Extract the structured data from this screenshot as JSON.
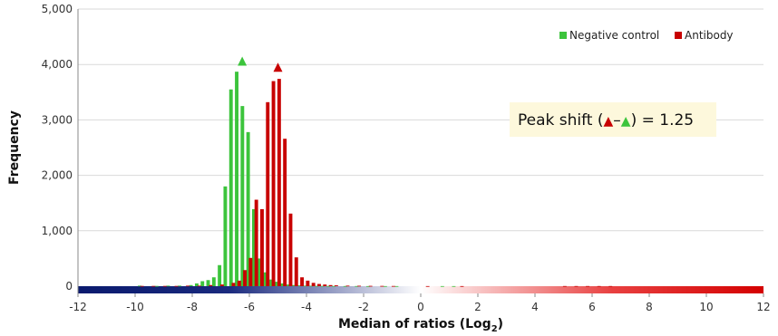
{
  "chart_data": {
    "type": "bar",
    "xlabel": "Median of ratios (Log",
    "xlabel_sub": "2",
    "xlabel_close": ")",
    "ylabel": "Frequency",
    "xlim": [
      -12,
      12
    ],
    "ylim": [
      0,
      5000
    ],
    "x_ticks": [
      "-12",
      "-10",
      "-8",
      "-6",
      "-4",
      "-2",
      "0",
      "2",
      "4",
      "6",
      "8",
      "10",
      "12"
    ],
    "y_ticks": [
      "0",
      "1,000",
      "2,000",
      "3,000",
      "4,000",
      "5,000"
    ],
    "grid": true,
    "legend_position": "top-right",
    "gradient_bar": {
      "from": "#0a1a6e",
      "mid": "#ffffff",
      "to": "#d40000",
      "from_x": -12,
      "mid_x": 0,
      "to_x": 12
    },
    "series": [
      {
        "name": "Negative control",
        "color": "#3cc43c",
        "x": [
          -9.8,
          -9.2,
          -8.8,
          -8.4,
          -8.0,
          -7.8,
          -7.6,
          -7.4,
          -7.2,
          -7.0,
          -6.8,
          -6.6,
          -6.4,
          -6.2,
          -6.0,
          -5.8,
          -5.6,
          -5.4,
          -5.2,
          -5.0,
          -4.8,
          -4.6,
          -4.4,
          -4.2,
          -4.0,
          -3.8,
          -3.6,
          -3.4,
          -3.2,
          -3.0,
          -2.6,
          -2.2,
          -1.8,
          -1.2,
          -0.8,
          0.8,
          1.2
        ],
        "values": [
          10,
          5,
          10,
          10,
          20,
          50,
          90,
          110,
          160,
          380,
          1800,
          3550,
          3870,
          3250,
          2780,
          1390,
          500,
          250,
          120,
          80,
          50,
          30,
          20,
          15,
          10,
          8,
          6,
          5,
          4,
          4,
          3,
          3,
          2,
          2,
          2,
          2,
          2
        ]
      },
      {
        "name": "Antibody",
        "color": "#c80000",
        "x": [
          -9.8,
          -9.4,
          -9.0,
          -8.6,
          -8.2,
          -7.8,
          -7.4,
          -7.0,
          -6.6,
          -6.4,
          -6.2,
          -6.0,
          -5.8,
          -5.6,
          -5.4,
          -5.2,
          -5.0,
          -4.8,
          -4.6,
          -4.4,
          -4.2,
          -4.0,
          -3.8,
          -3.6,
          -3.4,
          -3.2,
          -3.0,
          -2.6,
          -2.2,
          -1.8,
          -1.4,
          -1.0,
          0.2,
          1.4,
          5.0,
          5.4,
          5.8,
          6.2,
          6.6
        ],
        "values": [
          5,
          5,
          5,
          5,
          10,
          10,
          20,
          30,
          60,
          100,
          290,
          510,
          1560,
          1390,
          3320,
          3700,
          3740,
          2660,
          1310,
          520,
          160,
          100,
          60,
          40,
          30,
          20,
          15,
          10,
          8,
          6,
          5,
          4,
          2,
          2,
          3,
          3,
          3,
          3,
          3
        ]
      }
    ],
    "markers": [
      {
        "series": "Negative control",
        "x": -6.25,
        "y": 4060,
        "color": "#3cc43c"
      },
      {
        "series": "Antibody",
        "x": -5.0,
        "y": 3950,
        "color": "#c80000"
      }
    ],
    "annotation": {
      "text_prefix": "Peak shift (",
      "text_dash": "–",
      "text_suffix": ") = 1.25",
      "background": "#fdf8dc"
    }
  }
}
